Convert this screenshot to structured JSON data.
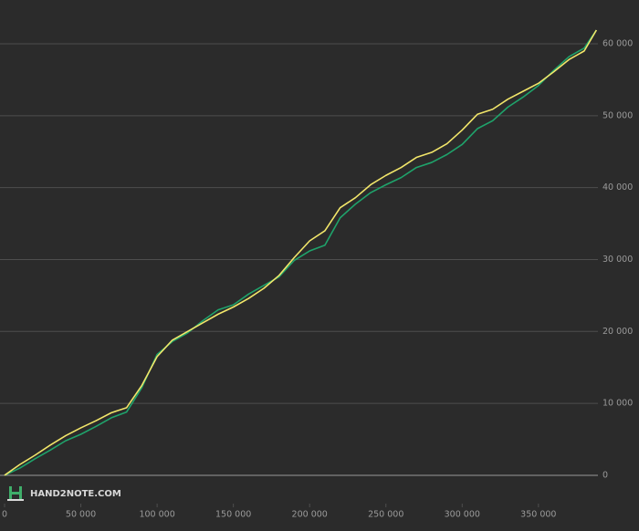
{
  "chart_data": {
    "type": "line",
    "x": [
      0,
      10000,
      20000,
      30000,
      40000,
      50000,
      60000,
      70000,
      80000,
      90000,
      100000,
      110000,
      120000,
      130000,
      140000,
      150000,
      160000,
      170000,
      180000,
      190000,
      200000,
      210000,
      220000,
      230000,
      240000,
      250000,
      260000,
      270000,
      280000,
      290000,
      300000,
      310000,
      320000,
      330000,
      340000,
      350000,
      360000,
      370000,
      380000,
      388000
    ],
    "series": [
      {
        "color": "#1fa36b",
        "values": [
          0,
          1000,
          2300,
          3500,
          4800,
          5700,
          6800,
          8000,
          8800,
          12200,
          16800,
          18600,
          19800,
          21500,
          23000,
          23700,
          25200,
          26400,
          27600,
          29900,
          31200,
          32000,
          35800,
          37700,
          39300,
          40400,
          41400,
          42800,
          43500,
          44600,
          46000,
          48200,
          49300,
          51200,
          52600,
          54200,
          56300,
          58200,
          59400,
          61900
        ]
      },
      {
        "color": "#f2e66a",
        "values": [
          0,
          1500,
          2800,
          4200,
          5500,
          6600,
          7600,
          8700,
          9400,
          12500,
          16500,
          18800,
          20000,
          21200,
          22400,
          23400,
          24600,
          26000,
          27800,
          30300,
          32600,
          34000,
          37200,
          38600,
          40400,
          41700,
          42800,
          44200,
          44900,
          46100,
          48000,
          50200,
          50900,
          52300,
          53400,
          54500,
          56100,
          57800,
          59000,
          61900
        ]
      }
    ],
    "xlim": [
      -3000,
      389000
    ],
    "ylim": [
      -3000,
      66000
    ],
    "xticks": [
      0,
      {
        "value": 50000,
        "label": "50 000"
      },
      {
        "value": 100000,
        "label": "100 000"
      },
      {
        "value": 150000,
        "label": "150 000"
      },
      {
        "value": 200000,
        "label": "200 000"
      },
      {
        "value": 250000,
        "label": "250 000"
      },
      {
        "value": 300000,
        "label": "300 000"
      },
      {
        "value": 350000,
        "label": "350 000"
      }
    ],
    "yticks": [
      0,
      {
        "value": 10000,
        "label": "10 000"
      },
      {
        "value": 20000,
        "label": "20 000"
      },
      {
        "value": 30000,
        "label": "30 000"
      },
      {
        "value": 40000,
        "label": "40 000"
      },
      {
        "value": 50000,
        "label": "50 000"
      },
      {
        "value": 60000,
        "label": "60 000"
      }
    ],
    "grid": true,
    "watermark": "HAND2NOTE.COM"
  }
}
